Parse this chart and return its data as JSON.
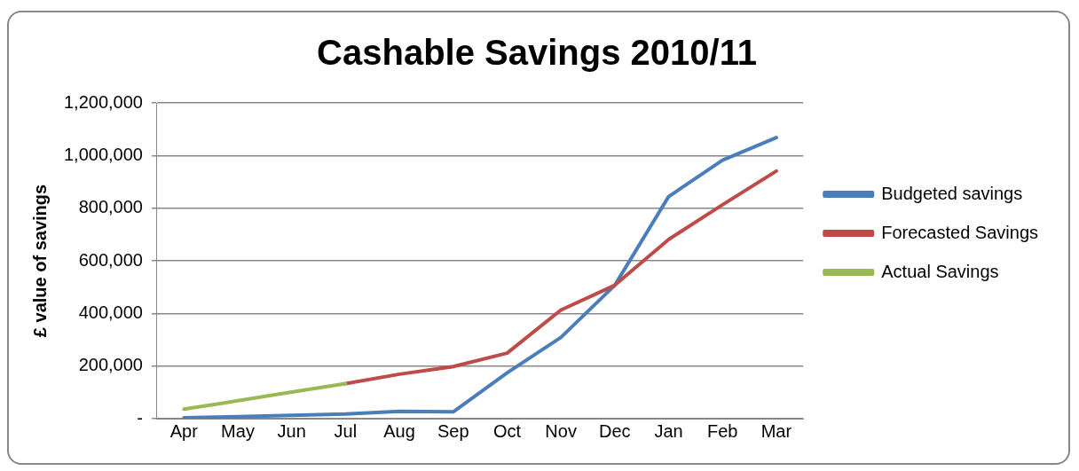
{
  "chart_data": {
    "type": "line",
    "title": "Cashable Savings 2010/11",
    "ylabel": "£ value of savings",
    "categories": [
      "Apr",
      "May",
      "Jun",
      "Jul",
      "Aug",
      "Sep",
      "Oct",
      "Nov",
      "Dec",
      "Jan",
      "Feb",
      "Mar"
    ],
    "series": [
      {
        "name": "Budgeted savings",
        "color": "#4a7ebb",
        "values": [
          3000,
          8000,
          13000,
          18000,
          28000,
          26000,
          174000,
          309000,
          507000,
          844000,
          982000,
          1068000
        ]
      },
      {
        "name": "Forecasted Savings",
        "color": "#be4b48",
        "values": [
          null,
          null,
          null,
          133000,
          169000,
          198000,
          249000,
          413000,
          507000,
          681000,
          813000,
          941000
        ]
      },
      {
        "name": "Actual Savings",
        "color": "#98b954",
        "values": [
          36000,
          68000,
          101000,
          133000,
          null,
          null,
          null,
          null,
          null,
          null,
          null,
          null
        ]
      }
    ],
    "ylim": [
      0,
      1200000
    ],
    "yticks": [
      {
        "value": 0,
        "label": "-"
      },
      {
        "value": 200000,
        "label": "200,000"
      },
      {
        "value": 400000,
        "label": "400,000"
      },
      {
        "value": 600000,
        "label": "600,000"
      },
      {
        "value": 800000,
        "label": "800,000"
      },
      {
        "value": 1000000,
        "label": "1,000,000"
      },
      {
        "value": 1200000,
        "label": "1,200,000"
      }
    ],
    "grid": "y",
    "legend": "right",
    "marker": "none",
    "line_style": "solid"
  }
}
